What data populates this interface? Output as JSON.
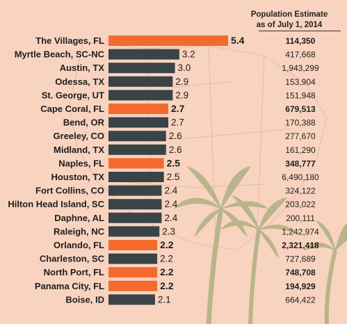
{
  "header": {
    "pop_line1": "Population Estimate",
    "pop_line2": "as of July 1, 2014"
  },
  "colors": {
    "highlight": "#f26b2d",
    "default": "#3a4447",
    "background": "#f8d3bf"
  },
  "chart_data": {
    "type": "bar",
    "orientation": "horizontal",
    "xlim": [
      0,
      5.4
    ],
    "categories": [
      "The Villages, FL",
      "Myrtle Beach, SC-NC",
      "Austin, TX",
      "Odessa, TX",
      "St. George, UT",
      "Cape Coral, FL",
      "Bend, OR",
      "Greeley, CO",
      "Midland, TX",
      "Naples, FL",
      "Houston, TX",
      "Fort Collins, CO",
      "Hilton Head Island, SC",
      "Daphne, AL",
      "Raleigh, NC",
      "Orlando, FL",
      "Charleston, SC",
      "North Port, FL",
      "Panama City, FL",
      "Boise, ID"
    ],
    "values": [
      5.4,
      3.2,
      3.0,
      2.9,
      2.9,
      2.7,
      2.7,
      2.6,
      2.6,
      2.5,
      2.5,
      2.4,
      2.4,
      2.4,
      2.3,
      2.2,
      2.2,
      2.2,
      2.2,
      2.1
    ],
    "value_labels": [
      "5.4",
      "3.2",
      "3.0",
      "2.9",
      "2.9",
      "2.7",
      "2.7",
      "2.6",
      "2.6",
      "2.5",
      "2.5",
      "2.4",
      "2.4",
      "2.4",
      "2.3",
      "2.2",
      "2.2",
      "2.2",
      "2.2",
      "2.1"
    ],
    "highlighted": [
      true,
      false,
      false,
      false,
      false,
      true,
      false,
      false,
      false,
      true,
      false,
      false,
      false,
      false,
      false,
      true,
      false,
      true,
      true,
      false
    ],
    "population": [
      "114,350",
      "417,668",
      "1,943,299",
      "153,904",
      "151,948",
      "679,513",
      "170,388",
      "277,670",
      "161,290",
      "348,777",
      "6,490,180",
      "324,122",
      "203,022",
      "200,111",
      "1,242,974",
      "2,321,418",
      "727,689",
      "748,708",
      "194,929",
      "664,422"
    ]
  }
}
